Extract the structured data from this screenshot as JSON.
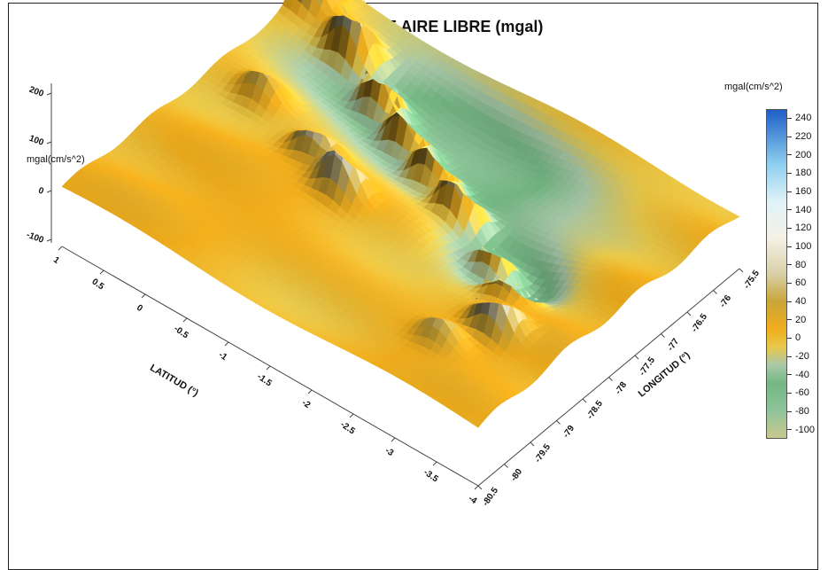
{
  "chart_data": {
    "type": "surface3d",
    "title": "ANOMALÍA DE AIRE LIBRE (mgal)",
    "xlabel": "LATITUD (°)",
    "ylabel": "LONGITUD (°)",
    "zlabel": "mgal(cm/s^2)",
    "colorbar_label": "mgal(cm/s^2)",
    "x_ticks": [
      "1",
      "0.5",
      "0",
      "-0.5",
      "-1",
      "-1.5",
      "-2",
      "-2.5",
      "-3",
      "-3.5",
      "-4"
    ],
    "y_ticks": [
      "-80.5",
      "-80",
      "-79.5",
      "-79",
      "-78.5",
      "-78",
      "-77.5",
      "-77",
      "-76.5",
      "-76",
      "-75.5"
    ],
    "z_ticks": [
      "200",
      "100",
      "0",
      "-100"
    ],
    "colorbar_ticks": [
      "240",
      "220",
      "200",
      "180",
      "160",
      "140",
      "120",
      "100",
      "80",
      "60",
      "40",
      "20",
      "0",
      "-20",
      "-40",
      "-60",
      "-80",
      "-100"
    ],
    "xlim": [
      1,
      -4
    ],
    "ylim": [
      -80.5,
      -75.5
    ],
    "zlim": [
      -100,
      200
    ],
    "colorbar_range": [
      -110,
      250
    ],
    "colorscale": [
      {
        "value": -110,
        "color": "#c9c98e"
      },
      {
        "value": -80,
        "color": "#8fc49a"
      },
      {
        "value": -50,
        "color": "#74b784"
      },
      {
        "value": -30,
        "color": "#a9c9a8"
      },
      {
        "value": -10,
        "color": "#e8c84a"
      },
      {
        "value": 10,
        "color": "#f0ad1c"
      },
      {
        "value": 40,
        "color": "#c9a63a"
      },
      {
        "value": 70,
        "color": "#d9d0a8"
      },
      {
        "value": 110,
        "color": "#f4f1e6"
      },
      {
        "value": 150,
        "color": "#dff2f7"
      },
      {
        "value": 190,
        "color": "#8fd0ef"
      },
      {
        "value": 250,
        "color": "#1e5fc7"
      }
    ],
    "peaks": [
      {
        "lat": 0.9,
        "lon": -75.9,
        "value": 170
      },
      {
        "lat": 0.2,
        "lon": -76.2,
        "value": 160
      },
      {
        "lat": -0.4,
        "lon": -76.6,
        "value": 150
      },
      {
        "lat": -0.9,
        "lon": -76.9,
        "value": 170
      },
      {
        "lat": -1.4,
        "lon": -77.2,
        "value": 160
      },
      {
        "lat": -1.9,
        "lon": -77.5,
        "value": 150
      },
      {
        "lat": -2.6,
        "lon": -77.9,
        "value": 140
      },
      {
        "lat": -3.0,
        "lon": -78.3,
        "value": 130
      },
      {
        "lat": -3.3,
        "lon": -79.0,
        "value": 140
      },
      {
        "lat": -1.0,
        "lon": -78.3,
        "value": 130
      },
      {
        "lat": -0.5,
        "lon": -78.0,
        "value": 110
      },
      {
        "lat": 0.4,
        "lon": -77.6,
        "value": 70
      },
      {
        "lat": -3.0,
        "lon": -79.6,
        "value": 60
      }
    ]
  }
}
